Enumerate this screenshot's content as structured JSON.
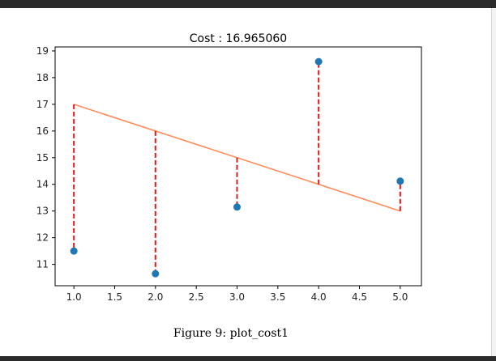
{
  "caption": "Figure 9: plot_cost1",
  "chart_data": {
    "type": "scatter",
    "title": "Cost : 16.965060",
    "xlabel": "",
    "ylabel": "",
    "xlim": [
      0.77,
      5.26
    ],
    "ylim": [
      10.2,
      19.15
    ],
    "x_ticks": [
      1.0,
      1.5,
      2.0,
      2.5,
      3.0,
      3.5,
      4.0,
      4.5,
      5.0
    ],
    "y_ticks": [
      11,
      12,
      13,
      14,
      15,
      16,
      17,
      18,
      19
    ],
    "points": [
      {
        "x": 1,
        "y": 11.5
      },
      {
        "x": 2,
        "y": 10.65
      },
      {
        "x": 3,
        "y": 13.15
      },
      {
        "x": 4,
        "y": 18.6
      },
      {
        "x": 5,
        "y": 14.12
      }
    ],
    "fit_line": {
      "x": [
        1,
        5
      ],
      "y": [
        17,
        13
      ]
    },
    "colors": {
      "points": "#1f77b4",
      "fit_line": "#ff8c5a",
      "residuals": "#e8191a"
    },
    "grid": false
  }
}
